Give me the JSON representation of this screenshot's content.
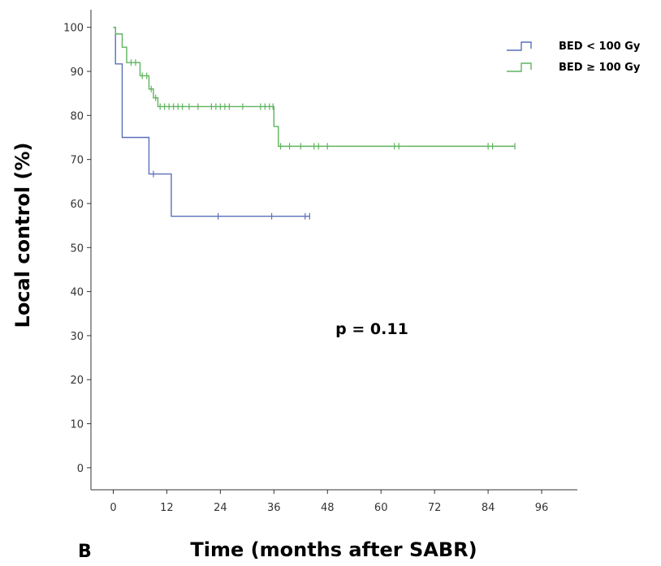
{
  "panel_label": "B",
  "annotation": "p = 0.11",
  "chart_data": {
    "type": "line",
    "step": true,
    "xlabel": "Time (months after SABR)",
    "ylabel": "Local control (%)",
    "xlim": [
      -5,
      104
    ],
    "ylim": [
      -5,
      104
    ],
    "x_ticks": [
      0,
      12,
      24,
      36,
      48,
      60,
      72,
      84,
      96
    ],
    "y_ticks": [
      0,
      10,
      20,
      30,
      40,
      50,
      60,
      70,
      80,
      90,
      100
    ],
    "x_tick_labels": [
      "0",
      "12",
      "24",
      "36",
      "48",
      "60",
      "72",
      "84",
      "96"
    ],
    "y_tick_labels": [
      "0",
      "10",
      "20",
      "30",
      "40",
      "50",
      "60",
      "70",
      "80",
      "90",
      "100"
    ],
    "grid": false,
    "legend_position": "top-right",
    "series": [
      {
        "name": "BED < 100 Gy",
        "color": "#5a6fba",
        "steps": [
          [
            0,
            100
          ],
          [
            0.5,
            91.7
          ],
          [
            2,
            75
          ],
          [
            8,
            66.7
          ],
          [
            13,
            57.1
          ],
          [
            44,
            57.1
          ]
        ],
        "censored": [
          [
            9,
            66.7
          ],
          [
            23.5,
            57.1
          ],
          [
            35.5,
            57.1
          ],
          [
            43,
            57.1
          ],
          [
            44,
            57.1
          ]
        ]
      },
      {
        "name": "BED ≥ 100 Gy",
        "color": "#5fb35f",
        "steps": [
          [
            0,
            100
          ],
          [
            0.5,
            98.5
          ],
          [
            2,
            95.5
          ],
          [
            3,
            92
          ],
          [
            6,
            89
          ],
          [
            8,
            86
          ],
          [
            9,
            84
          ],
          [
            10,
            82
          ],
          [
            36,
            77.5
          ],
          [
            37,
            73
          ],
          [
            90,
            73
          ]
        ],
        "censored": [
          [
            4,
            92
          ],
          [
            5,
            92
          ],
          [
            6.5,
            89
          ],
          [
            7.5,
            89
          ],
          [
            8.5,
            86
          ],
          [
            9.5,
            84
          ],
          [
            10.5,
            82
          ],
          [
            11.5,
            82
          ],
          [
            12.5,
            82
          ],
          [
            13.5,
            82
          ],
          [
            14.5,
            82
          ],
          [
            15.5,
            82
          ],
          [
            17,
            82
          ],
          [
            19,
            82
          ],
          [
            22,
            82
          ],
          [
            23,
            82
          ],
          [
            24,
            82
          ],
          [
            25,
            82
          ],
          [
            26,
            82
          ],
          [
            29,
            82
          ],
          [
            33,
            82
          ],
          [
            34,
            82
          ],
          [
            35,
            82
          ],
          [
            35.8,
            82
          ],
          [
            37.5,
            73
          ],
          [
            39.5,
            73
          ],
          [
            42,
            73
          ],
          [
            45,
            73
          ],
          [
            46,
            73
          ],
          [
            48,
            73
          ],
          [
            63,
            73
          ],
          [
            64,
            73
          ],
          [
            84,
            73
          ],
          [
            85,
            73
          ],
          [
            90,
            73
          ]
        ]
      }
    ]
  }
}
